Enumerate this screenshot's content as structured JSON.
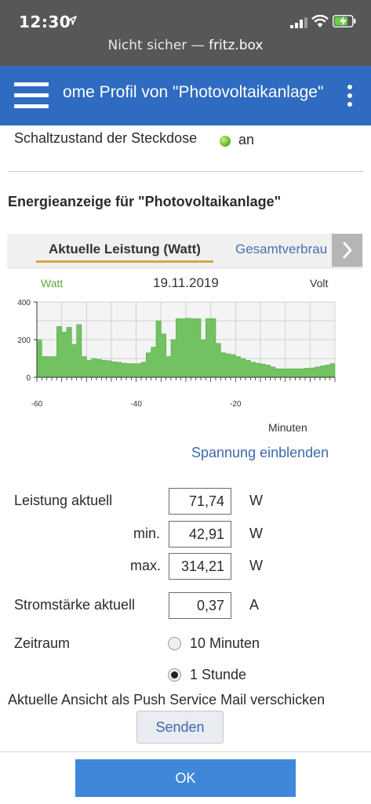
{
  "status_bar": {
    "time": "12:30",
    "security": "Nicht sicher —",
    "host": "fritz.box"
  },
  "header": {
    "title": "ome Profil von \"Photovoltaikanlage\""
  },
  "socket": {
    "label": "Schaltzustand der Steckdose",
    "value": "an",
    "status_color": "#6cc02a"
  },
  "energy": {
    "heading": "Energieanzeige für \"Photovoltaikanlage\"",
    "tabs": [
      {
        "label": "Aktuelle Leistung (Watt)"
      },
      {
        "label": "Gesamtverbrau"
      }
    ],
    "voltage_link": "Spannung einblenden"
  },
  "chart_data": {
    "type": "area",
    "title": "19.11.2019",
    "left_axis_label": "Watt",
    "right_axis_label": "Volt",
    "xlabel": "Minuten",
    "xlim": [
      -60,
      0
    ],
    "ylim": [
      0,
      400
    ],
    "x_ticks": [
      "-60",
      "-40",
      "-20"
    ],
    "y_ticks": [
      "0",
      "200",
      "400"
    ],
    "grid": true,
    "series": [
      {
        "color": "#72c262",
        "x": [
          -60,
          -59,
          -58,
          -57,
          -56,
          -55,
          -54,
          -53,
          -52,
          -51,
          -50,
          -49,
          -48,
          -47,
          -46,
          -45,
          -44,
          -43,
          -42,
          -41,
          -40,
          -39,
          -38,
          -37,
          -36,
          -35,
          -34,
          -33,
          -32,
          -31,
          -30,
          -29,
          -28,
          -27,
          -26,
          -25,
          -24,
          -23,
          -22,
          -21,
          -20,
          -19,
          -18,
          -17,
          -16,
          -15,
          -14,
          -13,
          -12,
          -11,
          -10,
          -9,
          -8,
          -7,
          -6,
          -5,
          -4,
          -3,
          -2,
          -1,
          0
        ],
        "y": [
          200,
          110,
          110,
          110,
          270,
          240,
          265,
          175,
          280,
          110,
          90,
          100,
          95,
          90,
          88,
          82,
          80,
          75,
          72,
          72,
          72,
          80,
          130,
          160,
          300,
          230,
          110,
          200,
          312,
          312,
          314,
          312,
          312,
          200,
          312,
          312,
          180,
          130,
          125,
          120,
          110,
          100,
          90,
          80,
          75,
          70,
          65,
          55,
          45,
          45,
          45,
          45,
          45,
          45,
          48,
          50,
          55,
          60,
          65,
          72,
          72
        ]
      }
    ]
  },
  "readings": {
    "power_label": "Leistung aktuell",
    "power_value": "71,74",
    "power_unit": "W",
    "min_label": "min.",
    "min_value": "42,91",
    "min_unit": "W",
    "max_label": "max.",
    "max_value": "314,21",
    "max_unit": "W",
    "current_label": "Stromstärke aktuell",
    "current_value": "0,37",
    "current_unit": "A"
  },
  "period": {
    "label": "Zeitraum",
    "options": [
      {
        "label": "10 Minuten",
        "selected": false
      },
      {
        "label": "1 Stunde",
        "selected": true
      }
    ]
  },
  "push": {
    "label": "Aktuelle Ansicht als Push Service Mail verschicken",
    "send_label": "Senden"
  },
  "footer": {
    "ok_label": "OK"
  }
}
